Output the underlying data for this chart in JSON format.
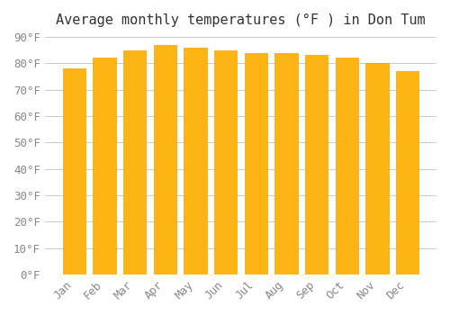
{
  "title": "Average monthly temperatures (°F ) in Don Tum",
  "months": [
    "Jan",
    "Feb",
    "Mar",
    "Apr",
    "May",
    "Jun",
    "Jul",
    "Aug",
    "Sep",
    "Oct",
    "Nov",
    "Dec"
  ],
  "values": [
    78,
    82,
    85,
    87,
    86,
    85,
    84,
    84,
    83,
    82,
    80,
    77
  ],
  "bar_color_face": "#FDB515",
  "bar_color_edge": "#F5A000",
  "background_color": "#FFFFFF",
  "grid_color": "#CCCCCC",
  "ylim": [
    0,
    90
  ],
  "yticks": [
    0,
    10,
    20,
    30,
    40,
    50,
    60,
    70,
    80,
    90
  ],
  "title_fontsize": 11,
  "tick_fontsize": 9,
  "font_color": "#888888",
  "bar_width": 0.75
}
